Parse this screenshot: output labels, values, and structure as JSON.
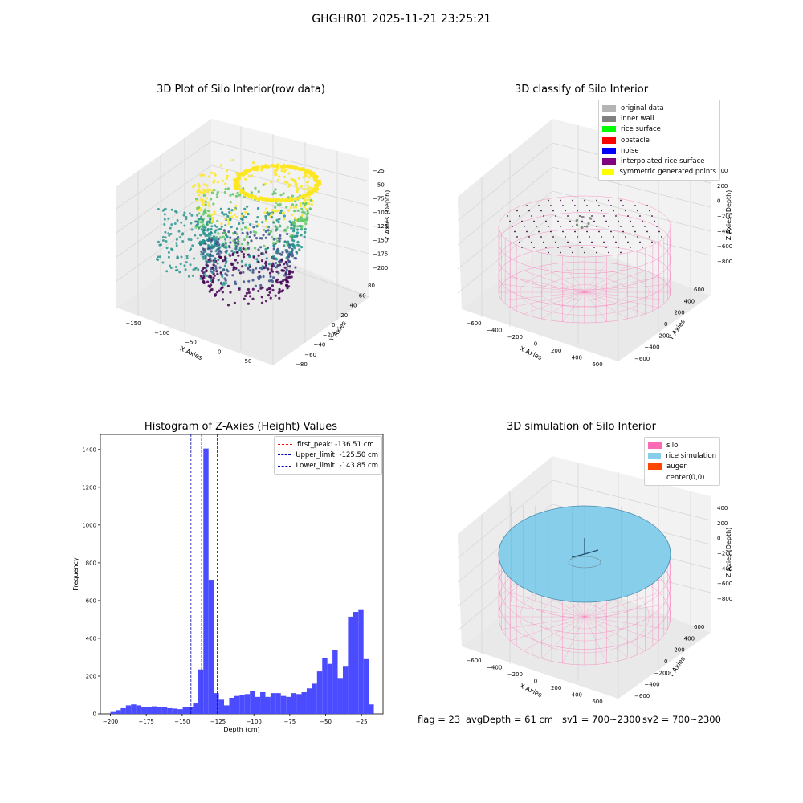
{
  "suptitle": "GHGHR01 2025-11-21 23:25:21",
  "panel1": {
    "title": "3D Plot of Silo Interior(row data)",
    "xlabel": "X Axies",
    "ylabel": "Y Axies",
    "zlabel": "Z Axies (Depth)",
    "xticks": [
      "−150",
      "−100",
      "−50",
      "0",
      "50"
    ],
    "yticks": [
      "−80",
      "−60",
      "−40",
      "−20",
      "0",
      "20",
      "40",
      "60",
      "80"
    ],
    "zticks": [
      "−25",
      "−50",
      "−75",
      "−100",
      "−125",
      "−150",
      "−175",
      "−200"
    ],
    "colormap": [
      "#440154",
      "#3b528b",
      "#21918c",
      "#5ec962",
      "#fde725"
    ]
  },
  "panel2": {
    "title": "3D classify of Silo Interior",
    "xlabel": "X Axies",
    "ylabel": "Y Axies",
    "zlabel": "Z Axies (Depth)",
    "xticks": [
      "−600",
      "−400",
      "−200",
      "0",
      "200",
      "400",
      "600"
    ],
    "yticks": [
      "−600",
      "−400",
      "−200",
      "0",
      "200",
      "400",
      "600"
    ],
    "zticks": [
      "400",
      "200",
      "0",
      "−200",
      "−400",
      "−600",
      "−800"
    ],
    "legend": [
      {
        "label": "original data",
        "color": "#b4b4b4"
      },
      {
        "label": "inner wall",
        "color": "#808080"
      },
      {
        "label": "rice surface",
        "color": "#00ff00"
      },
      {
        "label": "obstacle",
        "color": "#ff0000"
      },
      {
        "label": "noise",
        "color": "#0000ff"
      },
      {
        "label": "interpolated rice surface",
        "color": "#800080"
      },
      {
        "label": "symmetric generated points",
        "color": "#ffff00"
      }
    ]
  },
  "panel3": {
    "title": "Histogram of Z-Axies (Height) Values",
    "legend": [
      {
        "label": "first_peak: -136.51 cm",
        "color": "#ff0000"
      },
      {
        "label": "Upper_limit: -125.50 cm",
        "color": "#0000aa"
      },
      {
        "label": "Lower_limit: -143.85 cm",
        "color": "#0000aa"
      }
    ]
  },
  "panel4": {
    "title": "3D simulation of Silo Interior",
    "xlabel": "X Axies",
    "ylabel": "Y Axies",
    "zlabel": "Z Axies (Depth)",
    "xticks": [
      "−600",
      "−400",
      "−200",
      "0",
      "200",
      "400",
      "600"
    ],
    "yticks": [
      "−600",
      "−400",
      "−200",
      "0",
      "200",
      "400",
      "600"
    ],
    "zticks": [
      "400",
      "200",
      "0",
      "−200",
      "−400",
      "−600",
      "−800"
    ],
    "legend": [
      {
        "label": "silo",
        "color": "#ff69b4"
      },
      {
        "label": "rice simulation",
        "color": "#87ceeb"
      },
      {
        "label": "auger",
        "color": "#ff4500"
      },
      {
        "label": "center(0,0)",
        "color": ""
      }
    ]
  },
  "footer": {
    "flag": "flag = 23",
    "avg": "avgDepth = 61 cm",
    "sv1": "sv1 = 700~2300",
    "sv2": "sv2 = 700~2300"
  },
  "chart_data": [
    {
      "type": "scatter",
      "title": "3D Plot of Silo Interior(row data)",
      "xlabel": "X Axies",
      "ylabel": "Y Axies",
      "zlabel": "Z Axies (Depth)",
      "xlim": [
        -170,
        80
      ],
      "ylim": [
        -85,
        85
      ],
      "zlim": [
        -210,
        -15
      ],
      "color_by": "z"
    },
    {
      "type": "scatter",
      "title": "3D classify of Silo Interior",
      "xlabel": "X Axies",
      "ylabel": "Y Axies",
      "zlabel": "Z Axies (Depth)",
      "xlim": [
        -700,
        700
      ],
      "ylim": [
        -700,
        700
      ],
      "zlim": [
        -900,
        400
      ]
    },
    {
      "type": "bar",
      "title": "Histogram of Z-Axies (Height) Values",
      "xlabel": "Depth (cm)",
      "ylabel": "Frequency",
      "xlim": [
        -207,
        -10
      ],
      "ylim": [
        0,
        1480
      ],
      "xticks": [
        -200,
        -175,
        -150,
        -125,
        -100,
        -75,
        -50,
        -25
      ],
      "yticks": [
        0,
        200,
        400,
        600,
        800,
        1000,
        1200,
        1400
      ],
      "bin_start": -200,
      "bin_width": 3.6,
      "values": [
        10,
        20,
        30,
        45,
        50,
        45,
        35,
        35,
        40,
        38,
        35,
        30,
        28,
        25,
        35,
        35,
        55,
        235,
        1405,
        710,
        110,
        75,
        45,
        85,
        95,
        100,
        105,
        120,
        90,
        115,
        90,
        110,
        110,
        95,
        90,
        110,
        105,
        115,
        135,
        160,
        225,
        295,
        265,
        340,
        190,
        250,
        515,
        540,
        550,
        290,
        50
      ],
      "lines": [
        {
          "label": "first_peak: -136.51 cm",
          "x": -136.51,
          "color": "#ff0000"
        },
        {
          "label": "Upper_limit: -125.50 cm",
          "x": -125.5,
          "color": "#0000aa"
        },
        {
          "label": "Lower_limit: -143.85 cm",
          "x": -143.85,
          "color": "#0000aa"
        }
      ],
      "bar_color": "#4b4bff"
    },
    {
      "type": "scatter",
      "title": "3D simulation of Silo Interior",
      "xlabel": "X Axies",
      "ylabel": "Y Axies",
      "zlabel": "Z Axies (Depth)",
      "xlim": [
        -700,
        700
      ],
      "ylim": [
        -700,
        700
      ],
      "zlim": [
        -900,
        400
      ]
    }
  ]
}
